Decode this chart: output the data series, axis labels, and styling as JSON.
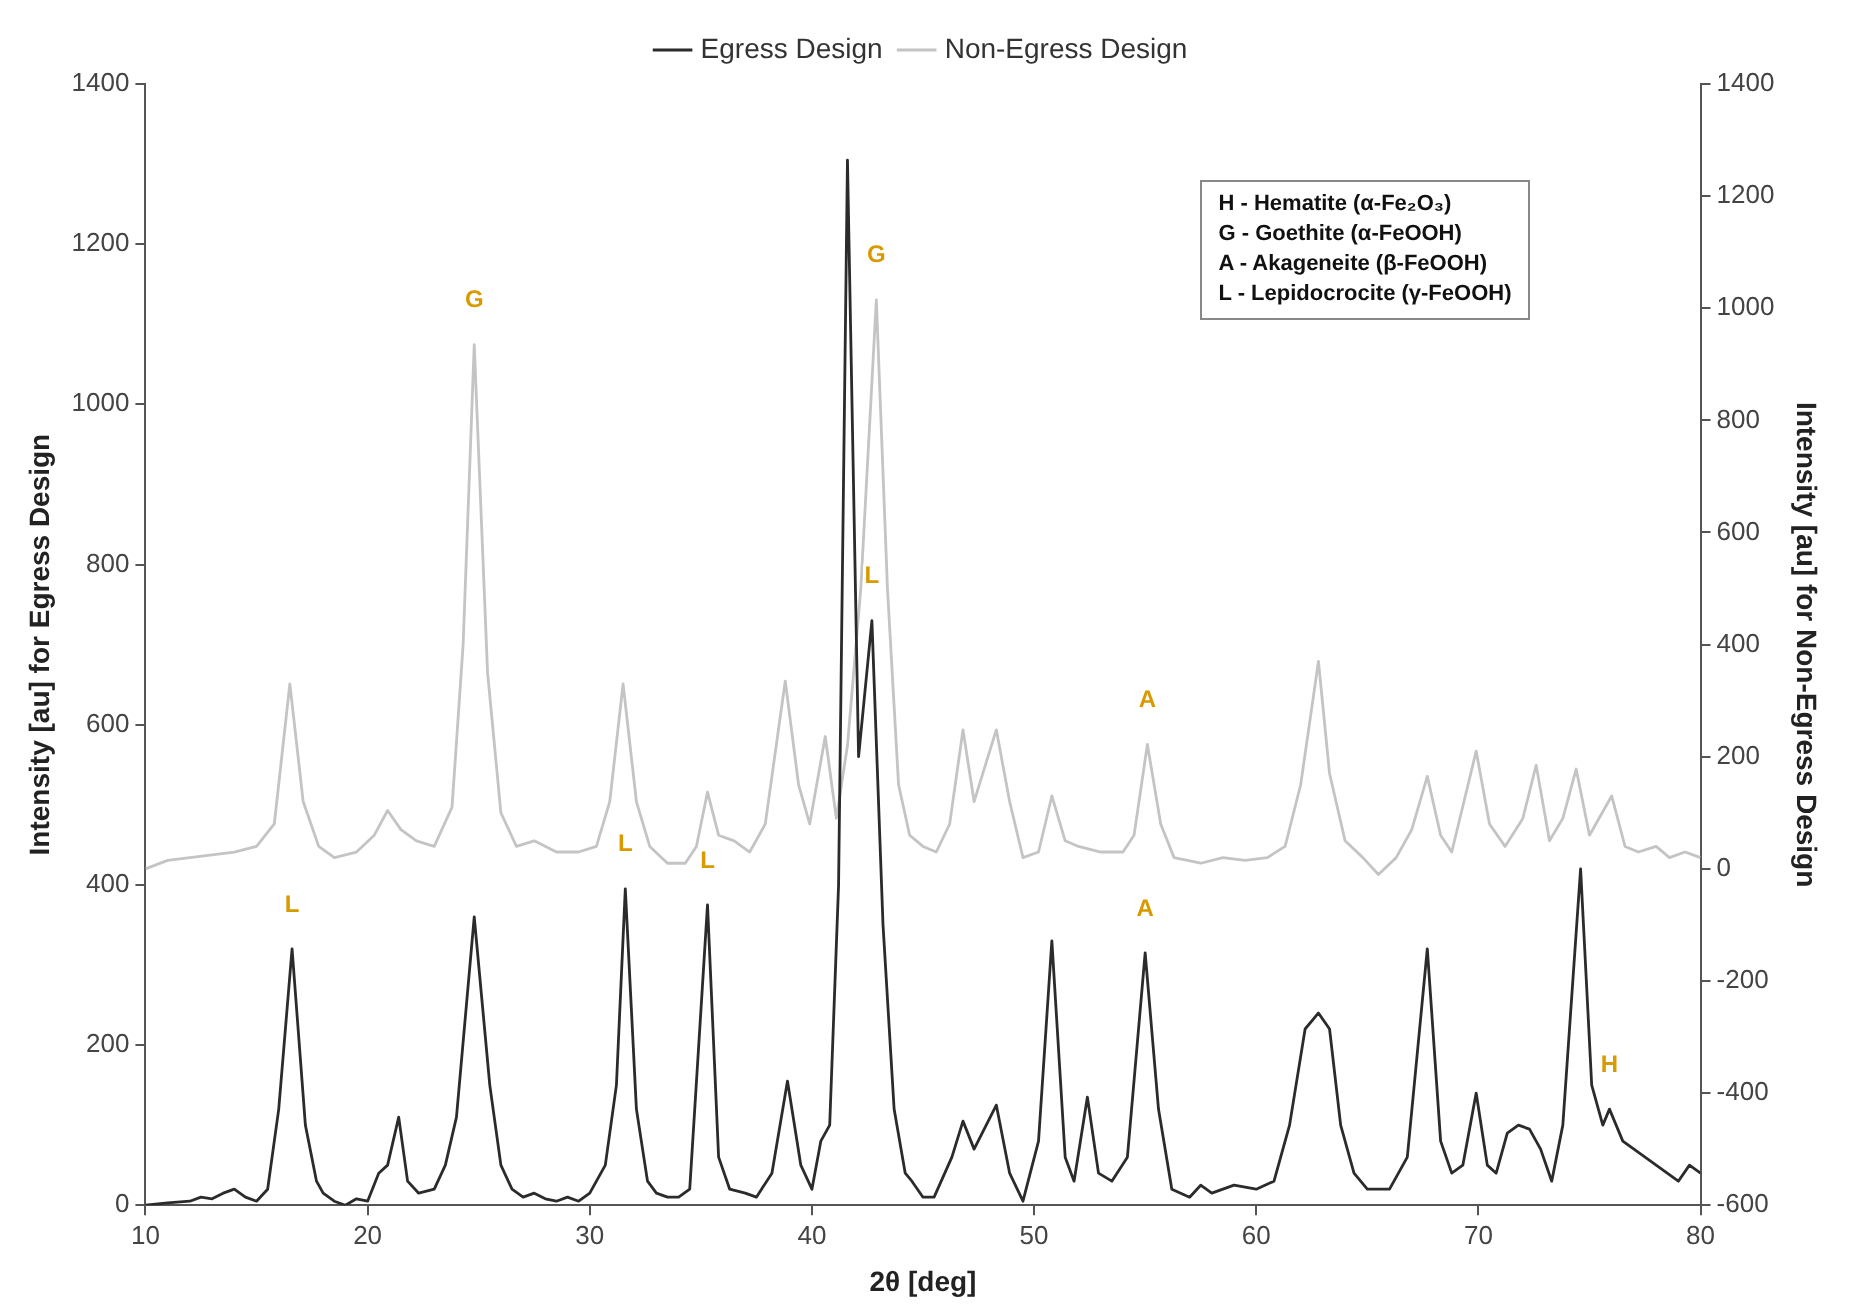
{
  "chart_data": {
    "type": "line",
    "xlabel": "2θ [deg]",
    "ylabel": "Intensity [au] for Egress Design",
    "y2label": "Intensity [au] for Non-Egress Design",
    "xlim": [
      10,
      80
    ],
    "xticks": [
      10,
      20,
      30,
      40,
      50,
      60,
      70,
      80
    ],
    "ylim": [
      0,
      1400
    ],
    "yticks": [
      0,
      200,
      400,
      600,
      800,
      1000,
      1200,
      1400
    ],
    "y2lim": [
      -600,
      1400
    ],
    "y2ticks": [
      -600,
      -400,
      -200,
      0,
      200,
      400,
      600,
      800,
      1000,
      1200,
      1400
    ],
    "grid": false,
    "legend": "top",
    "marker": "none",
    "line_style": "solid",
    "series": [
      {
        "name": "Egress Design",
        "color": "#2b2b2b",
        "x": [
          10,
          11,
          12,
          12.5,
          13,
          13.5,
          14,
          14.5,
          15,
          15.5,
          16,
          16.6,
          17.2,
          17.7,
          18,
          18.5,
          19,
          19.5,
          20,
          20.5,
          20.9,
          21.4,
          21.8,
          22.3,
          23,
          23.5,
          24,
          24.8,
          25.5,
          26,
          26.5,
          27,
          27.5,
          28,
          28.5,
          29,
          29.5,
          30,
          30.7,
          31.2,
          31.6,
          32.1,
          32.6,
          33,
          33.5,
          34,
          34.5,
          35.3,
          35.8,
          36.3,
          37,
          37.5,
          38.2,
          38.9,
          39.5,
          40,
          40.4,
          40.8,
          41.2,
          41.6,
          42.1,
          42.7,
          43.2,
          43.7,
          44.2,
          44.5,
          45,
          45.5,
          46.3,
          46.8,
          47.3,
          48.3,
          48.9,
          49.5,
          50.2,
          50.8,
          51.4,
          51.8,
          52.4,
          52.9,
          53.5,
          54.2,
          55,
          55.6,
          56.2,
          57,
          57.5,
          58,
          59,
          60,
          60.8,
          61.5,
          62.2,
          62.8,
          63.3,
          63.8,
          64.4,
          65,
          66,
          66.8,
          67.7,
          68.3,
          68.8,
          69.3,
          69.9,
          70.4,
          70.8,
          71.3,
          71.8,
          72.3,
          72.8,
          73.3,
          73.8,
          74.6,
          75.1,
          75.6,
          75.9,
          76.5,
          77,
          77.5,
          78,
          78.5,
          79,
          79.5,
          80
        ],
        "values": [
          0,
          3,
          5,
          10,
          8,
          15,
          20,
          10,
          5,
          20,
          120,
          320,
          100,
          30,
          15,
          5,
          0,
          8,
          5,
          40,
          50,
          110,
          30,
          15,
          20,
          50,
          110,
          360,
          150,
          50,
          20,
          10,
          15,
          8,
          5,
          10,
          5,
          15,
          50,
          150,
          395,
          120,
          30,
          15,
          10,
          10,
          20,
          375,
          60,
          20,
          15,
          10,
          40,
          155,
          50,
          20,
          80,
          100,
          400,
          1305,
          560,
          730,
          350,
          120,
          40,
          30,
          10,
          10,
          60,
          105,
          70,
          125,
          40,
          5,
          80,
          330,
          60,
          30,
          135,
          40,
          30,
          60,
          315,
          120,
          20,
          10,
          25,
          15,
          25,
          20,
          30,
          100,
          220,
          240,
          220,
          100,
          40,
          20,
          20,
          60,
          320,
          80,
          40,
          50,
          140,
          50,
          40,
          90,
          100,
          95,
          70,
          30,
          100,
          420,
          150,
          100,
          120,
          80,
          70,
          60,
          50,
          40,
          30,
          50,
          40
        ]
      },
      {
        "name": "Non-Egress Design",
        "color": "#c4c4c4",
        "axis": "y2",
        "x": [
          10,
          11,
          12,
          13,
          14,
          15,
          15.8,
          16.5,
          17.1,
          17.8,
          18.5,
          19.5,
          20.3,
          20.9,
          21.5,
          22.2,
          23,
          23.8,
          24.3,
          24.8,
          25.4,
          26,
          26.7,
          27.5,
          28.5,
          29.5,
          30.3,
          30.9,
          31.5,
          32.1,
          32.7,
          33.5,
          34.3,
          34.8,
          35.3,
          35.8,
          36.5,
          37.2,
          37.9,
          38.8,
          39.4,
          39.9,
          40.6,
          41.1,
          41.6,
          42.2,
          42.9,
          43.4,
          43.9,
          44.4,
          45,
          45.6,
          46.2,
          46.8,
          47.3,
          48.3,
          48.9,
          49.5,
          50.2,
          50.8,
          51.4,
          52,
          53,
          54,
          54.5,
          55.1,
          55.7,
          56.3,
          57.5,
          58.5,
          59.5,
          60.5,
          61.3,
          62,
          62.8,
          63.3,
          64,
          64.8,
          65.5,
          66.3,
          67,
          67.7,
          68.3,
          68.8,
          69.9,
          70.5,
          71.2,
          72,
          72.6,
          73.2,
          73.8,
          74.4,
          75,
          76,
          76.6,
          77.2,
          78,
          78.6,
          79.3,
          80
        ],
        "values": [
          0,
          15,
          20,
          25,
          30,
          40,
          80,
          330,
          120,
          40,
          20,
          30,
          60,
          104,
          70,
          50,
          40,
          110,
          400,
          935,
          350,
          100,
          40,
          50,
          30,
          30,
          40,
          120,
          330,
          120,
          40,
          10,
          10,
          40,
          137,
          60,
          50,
          30,
          80,
          335,
          150,
          80,
          236,
          90,
          220,
          500,
          1015,
          500,
          150,
          60,
          40,
          30,
          80,
          248,
          120,
          248,
          120,
          20,
          30,
          130,
          50,
          40,
          30,
          30,
          60,
          222,
          80,
          20,
          10,
          20,
          15,
          20,
          40,
          150,
          370,
          170,
          50,
          20,
          -10,
          20,
          70,
          165,
          60,
          30,
          210,
          80,
          40,
          90,
          185,
          50,
          90,
          178,
          60,
          130,
          40,
          30,
          40,
          20,
          30,
          20
        ]
      }
    ],
    "annotations": [
      {
        "text": "L",
        "x": 16.6,
        "y": 320
      },
      {
        "text": "G",
        "x": 24.8,
        "y": 1074.5
      },
      {
        "text": "L",
        "x": 31.6,
        "y": 395
      },
      {
        "text": "L",
        "x": 35.3,
        "y": 375
      },
      {
        "text": "G",
        "x": 42.9,
        "y": 1130.5
      },
      {
        "text": "L",
        "x": 42.7,
        "y": 730
      },
      {
        "text": "A",
        "x": 55.1,
        "y": 575.4
      },
      {
        "text": "A",
        "x": 55,
        "y": 315
      },
      {
        "text": "H",
        "x": 75.9,
        "y": 120
      },
      "H - Hematite (α-Fe₂O₃)",
      "G - Goethite (α-FeOOH)",
      "A - Akageneite (β-FeOOH)",
      "L - Lepidocrocite (γ-FeOOH)"
    ]
  }
}
